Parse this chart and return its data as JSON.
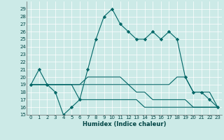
{
  "xlabel": "Humidex (Indice chaleur)",
  "xlim": [
    -0.5,
    23.5
  ],
  "ylim": [
    15,
    30
  ],
  "yticks": [
    15,
    16,
    17,
    18,
    19,
    20,
    21,
    22,
    23,
    24,
    25,
    26,
    27,
    28,
    29
  ],
  "xticks": [
    0,
    1,
    2,
    3,
    4,
    5,
    6,
    7,
    8,
    9,
    10,
    11,
    12,
    13,
    14,
    15,
    16,
    17,
    18,
    19,
    20,
    21,
    22,
    23
  ],
  "background_color": "#cceae7",
  "line_color": "#006666",
  "series": [
    [
      19,
      21,
      19,
      18,
      15,
      16,
      17,
      21,
      25,
      28,
      29,
      27,
      26,
      25,
      25,
      26,
      25,
      26,
      25,
      20,
      18,
      18,
      17,
      16
    ],
    [
      19,
      19,
      19,
      19,
      19,
      19,
      19,
      20,
      20,
      20,
      20,
      20,
      19,
      19,
      19,
      19,
      19,
      19,
      20,
      20,
      18,
      18,
      18,
      16
    ],
    [
      19,
      19,
      19,
      19,
      19,
      19,
      19,
      19,
      19,
      19,
      19,
      19,
      19,
      18,
      18,
      17,
      17,
      17,
      17,
      17,
      16,
      16,
      16,
      16
    ],
    [
      19,
      19,
      19,
      19,
      19,
      19,
      17,
      17,
      17,
      17,
      17,
      17,
      17,
      17,
      16,
      16,
      16,
      16,
      16,
      16,
      16,
      16,
      16,
      16
    ]
  ],
  "series_markers": [
    true,
    false,
    false,
    false
  ]
}
